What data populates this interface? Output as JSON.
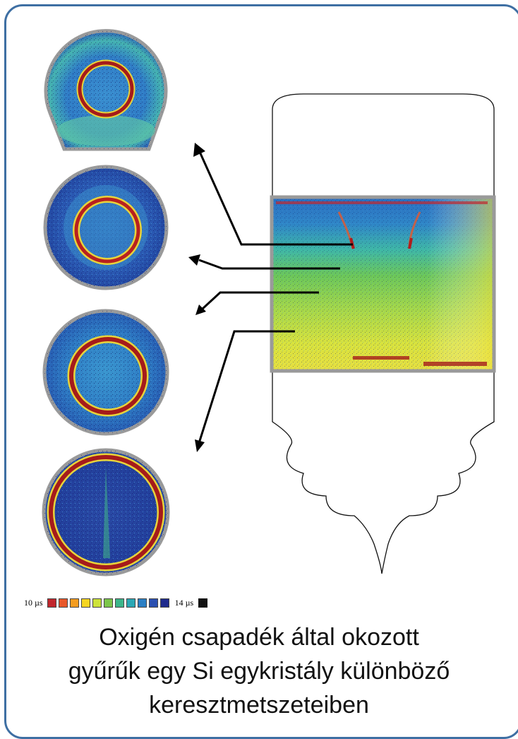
{
  "legend": {
    "min_label": "10 µs",
    "max_label": "14 µs",
    "swatches": [
      "#c1272d",
      "#e8572a",
      "#f39c1f",
      "#f5d520",
      "#cde23a",
      "#7cc64a",
      "#3bb58a",
      "#2aa7b5",
      "#2b7fc4",
      "#2a4fb0",
      "#1e2a8c"
    ],
    "black_swatch": "#111111"
  },
  "caption": {
    "line1": "Oxigén csapadék által okozott",
    "line2": "gyűrűk egy Si egykristály különböző",
    "line3": "keresztmetszeteiben"
  },
  "colors": {
    "frame": "#3e6fa3",
    "wafer_rim": "#9a9a9a",
    "ring_core": "#a51b1b",
    "ring_outer": "#e8d43a"
  }
}
